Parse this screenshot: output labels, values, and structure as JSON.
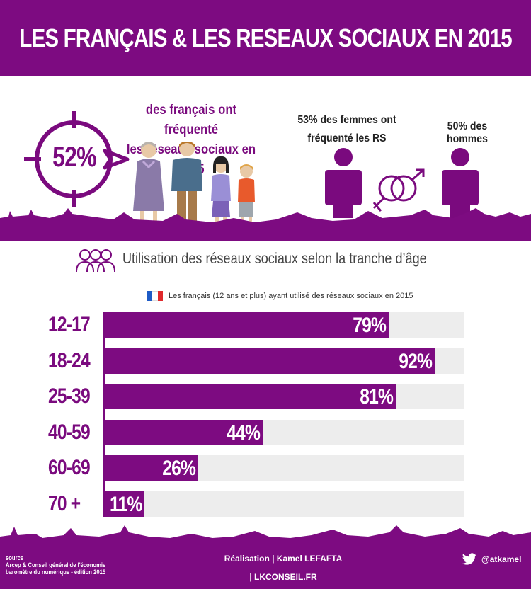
{
  "header": {
    "title": "LES FRANÇAIS  &  LES RESEAUX SOCIAUX EN 2015"
  },
  "hero": {
    "percent": "52%",
    "line1": "des français ont fréquenté",
    "line2": "les réseaux sociaux en 2015",
    "women_line1": "53% des femmes ont",
    "women_line2": "fréquenté les RS",
    "men": "50% des hommes"
  },
  "section": {
    "title": "Utilisation des réseaux sociaux selon la tranche d’âge"
  },
  "legend": {
    "text": "Les français (12 ans et plus) ayant utilisé des réseaux sociaux en 2015"
  },
  "colors": {
    "accent": "#7d0b81",
    "track": "#ededed",
    "flag_blue": "#1e5bc6",
    "flag_red": "#e0292c"
  },
  "chart_data": {
    "type": "bar",
    "orientation": "horizontal",
    "categories": [
      "12-17",
      "18-24",
      "25-39",
      "40-59",
      "60-69",
      "70 +"
    ],
    "values": [
      79,
      92,
      81,
      44,
      26,
      11
    ],
    "value_labels": [
      "79%",
      "92%",
      "81%",
      "44%",
      "26%",
      "11%"
    ],
    "xlim": [
      0,
      100
    ],
    "grid": false,
    "legend_placement": "top"
  },
  "footer": {
    "source_line1": "source",
    "source_line2": "Arcep & Conseil général de l'économie",
    "source_line3": "baromètre du numérique - édition 2015",
    "credit": "Réalisation | Kamel LEFAFTA",
    "site": "| LKCONSEIL.FR",
    "twitter_handle": "@atkamel"
  }
}
